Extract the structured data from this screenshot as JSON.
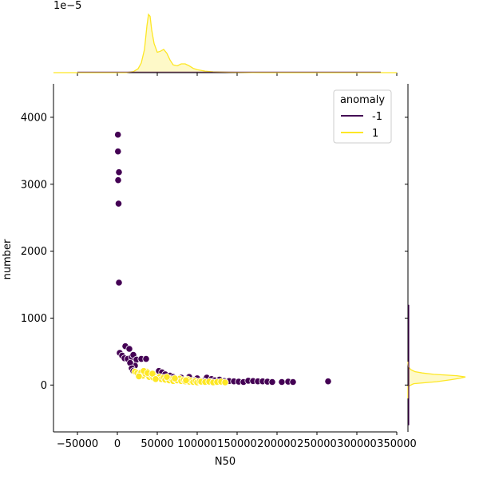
{
  "chart_data": {
    "type": "scatter",
    "title": "",
    "xlabel": "N50",
    "ylabel": "number",
    "xlim": [
      -80000,
      350000
    ],
    "ylim": [
      -700,
      4500
    ],
    "xticks": [
      -50000,
      0,
      50000,
      100000,
      150000,
      200000,
      250000,
      300000,
      350000
    ],
    "xtick_labels": [
      "−50000",
      "0",
      "50000",
      "100000",
      "150000",
      "200000",
      "250000",
      "300000",
      "350000"
    ],
    "yticks": [
      0,
      1000,
      2000,
      3000,
      4000
    ],
    "ytick_labels": [
      "0",
      "1000",
      "2000",
      "3000",
      "4000"
    ],
    "marginal_top_scale_label": "1e−5",
    "legend": {
      "title": "anomaly",
      "placement": "top-right",
      "entries": [
        {
          "label": "-1",
          "color": "#440154"
        },
        {
          "label": "1",
          "color": "#fde725"
        }
      ]
    },
    "series": [
      {
        "name": "-1",
        "color": "#440154",
        "points": [
          [
            700,
            3740
          ],
          [
            800,
            3490
          ],
          [
            2000,
            3180
          ],
          [
            1000,
            3060
          ],
          [
            1500,
            2710
          ],
          [
            2000,
            1530
          ],
          [
            3000,
            480
          ],
          [
            6000,
            440
          ],
          [
            9000,
            400
          ],
          [
            10000,
            580
          ],
          [
            15000,
            540
          ],
          [
            13000,
            390
          ],
          [
            18000,
            420
          ],
          [
            20000,
            450
          ],
          [
            24000,
            380
          ],
          [
            30000,
            390
          ],
          [
            36000,
            390
          ],
          [
            22000,
            290
          ],
          [
            16000,
            330
          ],
          [
            18000,
            250
          ],
          [
            20000,
            210
          ],
          [
            26000,
            180
          ],
          [
            52000,
            210
          ],
          [
            56000,
            190
          ],
          [
            60000,
            160
          ],
          [
            66000,
            140
          ],
          [
            70000,
            120
          ],
          [
            80000,
            110
          ],
          [
            90000,
            120
          ],
          [
            100000,
            100
          ],
          [
            112000,
            110
          ],
          [
            118000,
            90
          ],
          [
            122000,
            70
          ],
          [
            128000,
            80
          ],
          [
            134000,
            60
          ],
          [
            140000,
            60
          ],
          [
            146000,
            55
          ],
          [
            152000,
            50
          ],
          [
            158000,
            45
          ],
          [
            164000,
            65
          ],
          [
            170000,
            60
          ],
          [
            176000,
            55
          ],
          [
            182000,
            55
          ],
          [
            188000,
            50
          ],
          [
            194000,
            45
          ],
          [
            206000,
            45
          ],
          [
            214000,
            50
          ],
          [
            220000,
            45
          ],
          [
            264000,
            55
          ],
          [
            108000,
            60
          ],
          [
            116000,
            50
          ],
          [
            96000,
            70
          ]
        ]
      },
      {
        "name": "1",
        "color": "#fde725",
        "points": [
          [
            22000,
            200
          ],
          [
            25000,
            180
          ],
          [
            28000,
            160
          ],
          [
            30000,
            190
          ],
          [
            32000,
            140
          ],
          [
            35000,
            170
          ],
          [
            37000,
            200
          ],
          [
            40000,
            120
          ],
          [
            42000,
            150
          ],
          [
            45000,
            110
          ],
          [
            47000,
            130
          ],
          [
            50000,
            100
          ],
          [
            53000,
            120
          ],
          [
            55000,
            90
          ],
          [
            58000,
            110
          ],
          [
            60000,
            80
          ],
          [
            63000,
            100
          ],
          [
            65000,
            70
          ],
          [
            68000,
            90
          ],
          [
            70000,
            60
          ],
          [
            73000,
            80
          ],
          [
            75000,
            70
          ],
          [
            78000,
            95
          ],
          [
            80000,
            60
          ],
          [
            83000,
            75
          ],
          [
            85000,
            55
          ],
          [
            88000,
            85
          ],
          [
            90000,
            50
          ],
          [
            93000,
            65
          ],
          [
            95000,
            45
          ],
          [
            98000,
            60
          ],
          [
            100000,
            40
          ],
          [
            103000,
            55
          ],
          [
            105000,
            50
          ],
          [
            110000,
            45
          ],
          [
            115000,
            50
          ],
          [
            120000,
            40
          ],
          [
            125000,
            45
          ],
          [
            130000,
            50
          ],
          [
            135000,
            40
          ],
          [
            33000,
            210
          ],
          [
            38000,
            180
          ],
          [
            27000,
            130
          ],
          [
            44000,
            170
          ],
          [
            48000,
            90
          ],
          [
            62000,
            120
          ],
          [
            72000,
            100
          ],
          [
            86000,
            70
          ]
        ]
      }
    ],
    "marginal_x_density": {
      "series": "1",
      "color": "#fde725",
      "x": [
        -80000,
        10000,
        20000,
        26000,
        30000,
        34000,
        37000,
        39000,
        41000,
        43000,
        46000,
        50000,
        54000,
        58000,
        62000,
        66000,
        70000,
        75000,
        80000,
        85000,
        90000,
        95000,
        100000,
        110000,
        120000,
        140000,
        180000,
        350000
      ],
      "density": [
        0,
        0,
        0.05,
        0.2,
        0.5,
        1.2,
        2.4,
        3.0,
        2.9,
        2.2,
        1.5,
        1.05,
        1.1,
        1.2,
        1.0,
        0.65,
        0.4,
        0.35,
        0.45,
        0.45,
        0.35,
        0.22,
        0.15,
        0.08,
        0.04,
        0.02,
        0.0,
        0
      ]
    },
    "marginal_y_density": {
      "series": "1",
      "color": "#fde725",
      "y": [
        -200,
        -20,
        20,
        50,
        80,
        100,
        120,
        140,
        160,
        180,
        200,
        230,
        270,
        350
      ],
      "density": [
        0,
        0,
        0.1,
        0.5,
        0.75,
        0.9,
        1.0,
        0.85,
        0.45,
        0.25,
        0.12,
        0.05,
        0.01,
        0
      ]
    }
  }
}
